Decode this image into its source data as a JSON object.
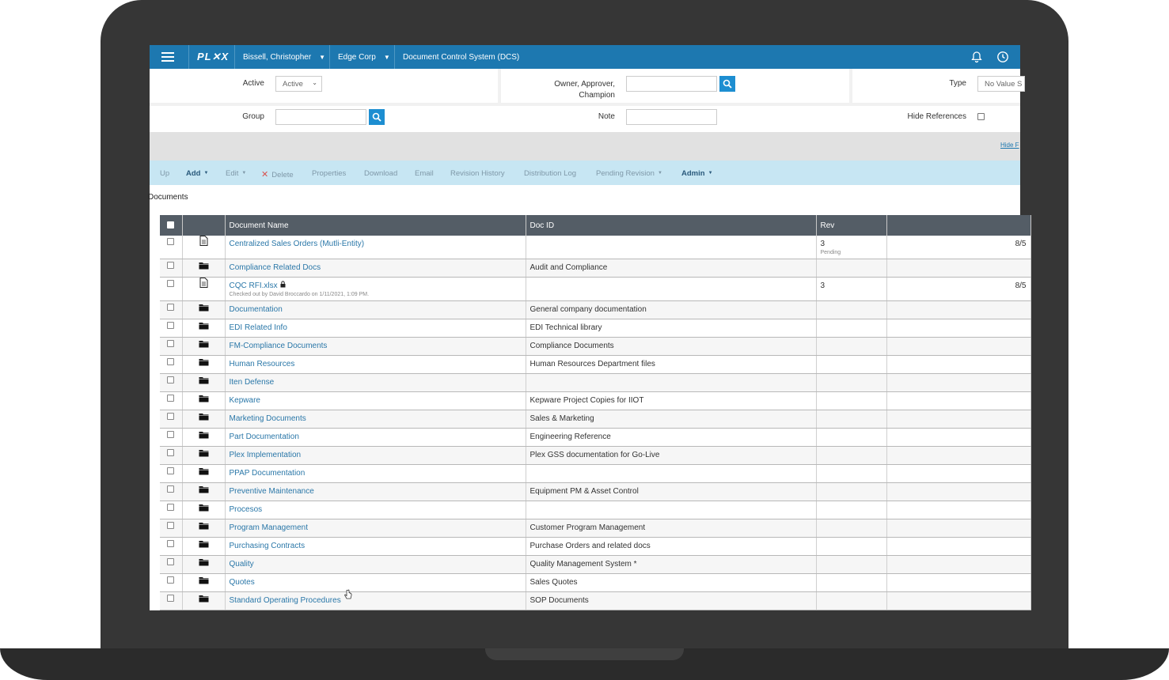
{
  "topbar": {
    "logo": "PL✕X",
    "user": "Bissell, Christopher",
    "company": "Edge Corp",
    "app_title": "Document Control System (DCS)"
  },
  "filters": {
    "active_label": "Active",
    "active_value": "Active",
    "owner_label_line1": "Owner, Approver,",
    "owner_label_line2": "Champion",
    "owner_value": "",
    "type_label": "Type",
    "type_value": "No Value S",
    "group_label": "Group",
    "group_value": "",
    "note_label": "Note",
    "note_value": "",
    "hide_references_label": "Hide References",
    "hide_link": "Hide F"
  },
  "actions": {
    "up": "Up",
    "add": "Add",
    "edit": "Edit",
    "delete": "Delete",
    "properties": "Properties",
    "download": "Download",
    "email": "Email",
    "revision_history": "Revision History",
    "distribution_log": "Distribution Log",
    "pending_revision": "Pending Revision",
    "admin": "Admin"
  },
  "section_title": "Documents",
  "table": {
    "columns": [
      "",
      "",
      "Document Name",
      "Doc ID",
      "Rev",
      ""
    ],
    "rows": [
      {
        "type": "file",
        "name": "Centralized Sales Orders (Mutli-Entity)",
        "doc_id": "",
        "rev": "3",
        "rev_status": "Pending",
        "date": "8/5",
        "sub": ""
      },
      {
        "type": "folder",
        "name": "Compliance Related Docs",
        "doc_id": "Audit and Compliance",
        "rev": "",
        "rev_status": "",
        "date": "",
        "sub": ""
      },
      {
        "type": "file",
        "name": "CQC RFI.xlsx",
        "doc_id": "",
        "rev": "3",
        "rev_status": "",
        "date": "8/5",
        "sub": "Checked out by David Broccardo on 1/11/2021, 1:09 PM.",
        "locked": true
      },
      {
        "type": "folder",
        "name": "Documentation",
        "doc_id": "General company documentation",
        "rev": "",
        "rev_status": "",
        "date": "",
        "sub": ""
      },
      {
        "type": "folder",
        "name": "EDI Related Info",
        "doc_id": "EDI Technical library",
        "rev": "",
        "rev_status": "",
        "date": "",
        "sub": ""
      },
      {
        "type": "folder",
        "name": "FM-Compliance Documents",
        "doc_id": "Compliance Documents",
        "rev": "",
        "rev_status": "",
        "date": "",
        "sub": ""
      },
      {
        "type": "folder",
        "name": "Human Resources",
        "doc_id": "Human Resources Department files",
        "rev": "",
        "rev_status": "",
        "date": "",
        "sub": ""
      },
      {
        "type": "folder",
        "name": "Iten Defense",
        "doc_id": "",
        "rev": "",
        "rev_status": "",
        "date": "",
        "sub": ""
      },
      {
        "type": "folder",
        "name": "Kepware",
        "doc_id": "Kepware Project Copies for IIOT",
        "rev": "",
        "rev_status": "",
        "date": "",
        "sub": ""
      },
      {
        "type": "folder",
        "name": "Marketing Documents",
        "doc_id": "Sales & Marketing",
        "rev": "",
        "rev_status": "",
        "date": "",
        "sub": ""
      },
      {
        "type": "folder",
        "name": "Part Documentation",
        "doc_id": "Engineering Reference",
        "rev": "",
        "rev_status": "",
        "date": "",
        "sub": ""
      },
      {
        "type": "folder",
        "name": "Plex Implementation",
        "doc_id": "Plex GSS documentation for Go-Live",
        "rev": "",
        "rev_status": "",
        "date": "",
        "sub": ""
      },
      {
        "type": "folder",
        "name": "PPAP Documentation",
        "doc_id": "",
        "rev": "",
        "rev_status": "",
        "date": "",
        "sub": ""
      },
      {
        "type": "folder",
        "name": "Preventive Maintenance",
        "doc_id": "Equipment PM & Asset Control",
        "rev": "",
        "rev_status": "",
        "date": "",
        "sub": ""
      },
      {
        "type": "folder",
        "name": "Procesos",
        "doc_id": "",
        "rev": "",
        "rev_status": "",
        "date": "",
        "sub": ""
      },
      {
        "type": "folder",
        "name": "Program Management",
        "doc_id": "Customer Program Management",
        "rev": "",
        "rev_status": "",
        "date": "",
        "sub": ""
      },
      {
        "type": "folder",
        "name": "Purchasing Contracts",
        "doc_id": "Purchase Orders and related docs",
        "rev": "",
        "rev_status": "",
        "date": "",
        "sub": ""
      },
      {
        "type": "folder",
        "name": "Quality",
        "doc_id": "Quality Management System *",
        "rev": "",
        "rev_status": "",
        "date": "",
        "sub": ""
      },
      {
        "type": "folder",
        "name": "Quotes",
        "doc_id": "Sales Quotes",
        "rev": "",
        "rev_status": "",
        "date": "",
        "sub": ""
      },
      {
        "type": "folder",
        "name": "Standard Operating Procedures",
        "doc_id": "SOP Documents",
        "rev": "",
        "rev_status": "",
        "date": "",
        "sub": ""
      }
    ]
  }
}
